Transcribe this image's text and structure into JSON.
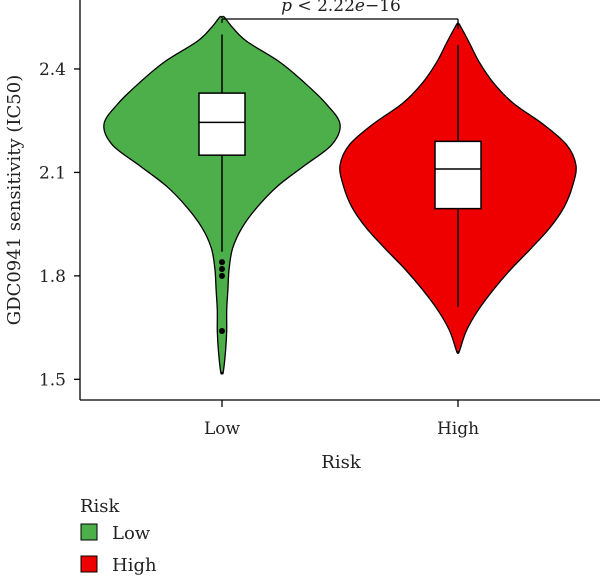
{
  "chart_data": {
    "type": "violin",
    "xlabel": "Risk",
    "ylabel": "GDC0941 sensitivity (IC50)",
    "categories": [
      "Low",
      "High"
    ],
    "ylim": [
      1.44,
      2.6
    ],
    "yticks": [
      1.5,
      1.8,
      2.1,
      2.4
    ],
    "ytick_labels": [
      "1.5",
      "1.8",
      "2.1",
      "2.4"
    ],
    "series": [
      {
        "name": "Low",
        "color": "#4daf4a",
        "min": 1.52,
        "max": 2.55,
        "q1": 2.15,
        "median": 2.245,
        "q3": 2.33,
        "whisker_low": 1.87,
        "whisker_high": 2.5,
        "outliers": [
          1.84,
          1.82,
          1.8,
          1.64
        ],
        "density": [
          [
            1.52,
            0.01
          ],
          [
            1.58,
            0.03
          ],
          [
            1.64,
            0.04
          ],
          [
            1.7,
            0.04
          ],
          [
            1.76,
            0.05
          ],
          [
            1.82,
            0.06
          ],
          [
            1.88,
            0.09
          ],
          [
            1.94,
            0.17
          ],
          [
            2.0,
            0.3
          ],
          [
            2.06,
            0.47
          ],
          [
            2.12,
            0.7
          ],
          [
            2.18,
            0.93
          ],
          [
            2.24,
            1.0
          ],
          [
            2.3,
            0.88
          ],
          [
            2.36,
            0.7
          ],
          [
            2.42,
            0.49
          ],
          [
            2.48,
            0.21
          ],
          [
            2.52,
            0.09
          ],
          [
            2.55,
            0.02
          ]
        ]
      },
      {
        "name": "High",
        "color": "#ee0000",
        "min": 1.58,
        "max": 2.53,
        "q1": 1.995,
        "median": 2.11,
        "q3": 2.19,
        "whisker_low": 1.71,
        "whisker_high": 2.47,
        "outliers": [],
        "density": [
          [
            1.58,
            0.01
          ],
          [
            1.64,
            0.07
          ],
          [
            1.7,
            0.17
          ],
          [
            1.76,
            0.3
          ],
          [
            1.82,
            0.45
          ],
          [
            1.88,
            0.62
          ],
          [
            1.94,
            0.78
          ],
          [
            2.0,
            0.9
          ],
          [
            2.06,
            0.97
          ],
          [
            2.12,
            1.0
          ],
          [
            2.18,
            0.92
          ],
          [
            2.24,
            0.72
          ],
          [
            2.3,
            0.47
          ],
          [
            2.36,
            0.3
          ],
          [
            2.42,
            0.18
          ],
          [
            2.48,
            0.09
          ],
          [
            2.53,
            0.01
          ]
        ]
      }
    ],
    "annotation": {
      "pvalue_prefix": "p",
      "pvalue_rest": " < 2.22",
      "pvalue_e": "e",
      "pvalue_exp": "−16",
      "bracket_y": 2.545
    },
    "legend": {
      "title": "Risk",
      "placement": "bottom-left",
      "items": [
        {
          "label": "Low",
          "color": "#4daf4a"
        },
        {
          "label": "High",
          "color": "#ee0000"
        }
      ]
    }
  }
}
